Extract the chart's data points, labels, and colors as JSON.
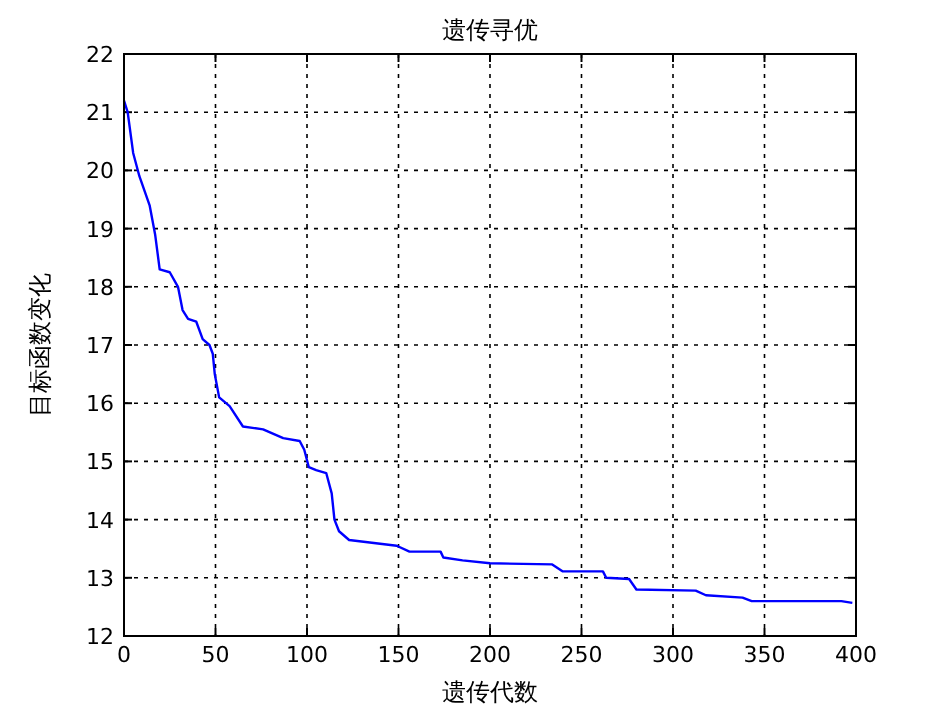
{
  "chart_data": {
    "type": "line",
    "title": "遗传寻优",
    "xlabel": "遗传代数",
    "ylabel": "目标函数变化",
    "x": [
      0,
      2,
      5,
      8.4,
      14,
      17,
      19.5,
      25,
      29.5,
      32,
      35,
      39.5,
      43,
      46.7,
      48.5,
      49.6,
      52,
      57.7,
      65,
      76,
      87,
      96,
      98.5,
      101,
      105,
      110.5,
      113.5,
      115,
      117.5,
      123,
      149,
      156,
      173,
      174.5,
      185,
      200,
      234,
      239.8,
      261.7,
      263.5,
      276,
      280,
      312.4,
      318,
      338,
      343,
      392,
      398
    ],
    "values": [
      21.2,
      21.0,
      20.3,
      19.9,
      19.4,
      18.9,
      18.3,
      18.25,
      18.0,
      17.6,
      17.45,
      17.4,
      17.1,
      17.0,
      16.85,
      16.5,
      16.1,
      15.95,
      15.6,
      15.55,
      15.4,
      15.35,
      15.2,
      14.9,
      14.85,
      14.8,
      14.45,
      14.0,
      13.8,
      13.65,
      13.55,
      13.45,
      13.45,
      13.35,
      13.3,
      13.25,
      13.23,
      13.11,
      13.11,
      13.0,
      12.98,
      12.8,
      12.78,
      12.7,
      12.66,
      12.6,
      12.6,
      12.57
    ],
    "color": "#0000ff",
    "xlim": [
      0,
      400
    ],
    "ylim": [
      12,
      22
    ],
    "xticks": [
      0,
      50,
      100,
      150,
      200,
      250,
      300,
      350,
      400
    ],
    "yticks": [
      12,
      13,
      14,
      15,
      16,
      17,
      18,
      19,
      20,
      21,
      22
    ],
    "grid": true
  }
}
